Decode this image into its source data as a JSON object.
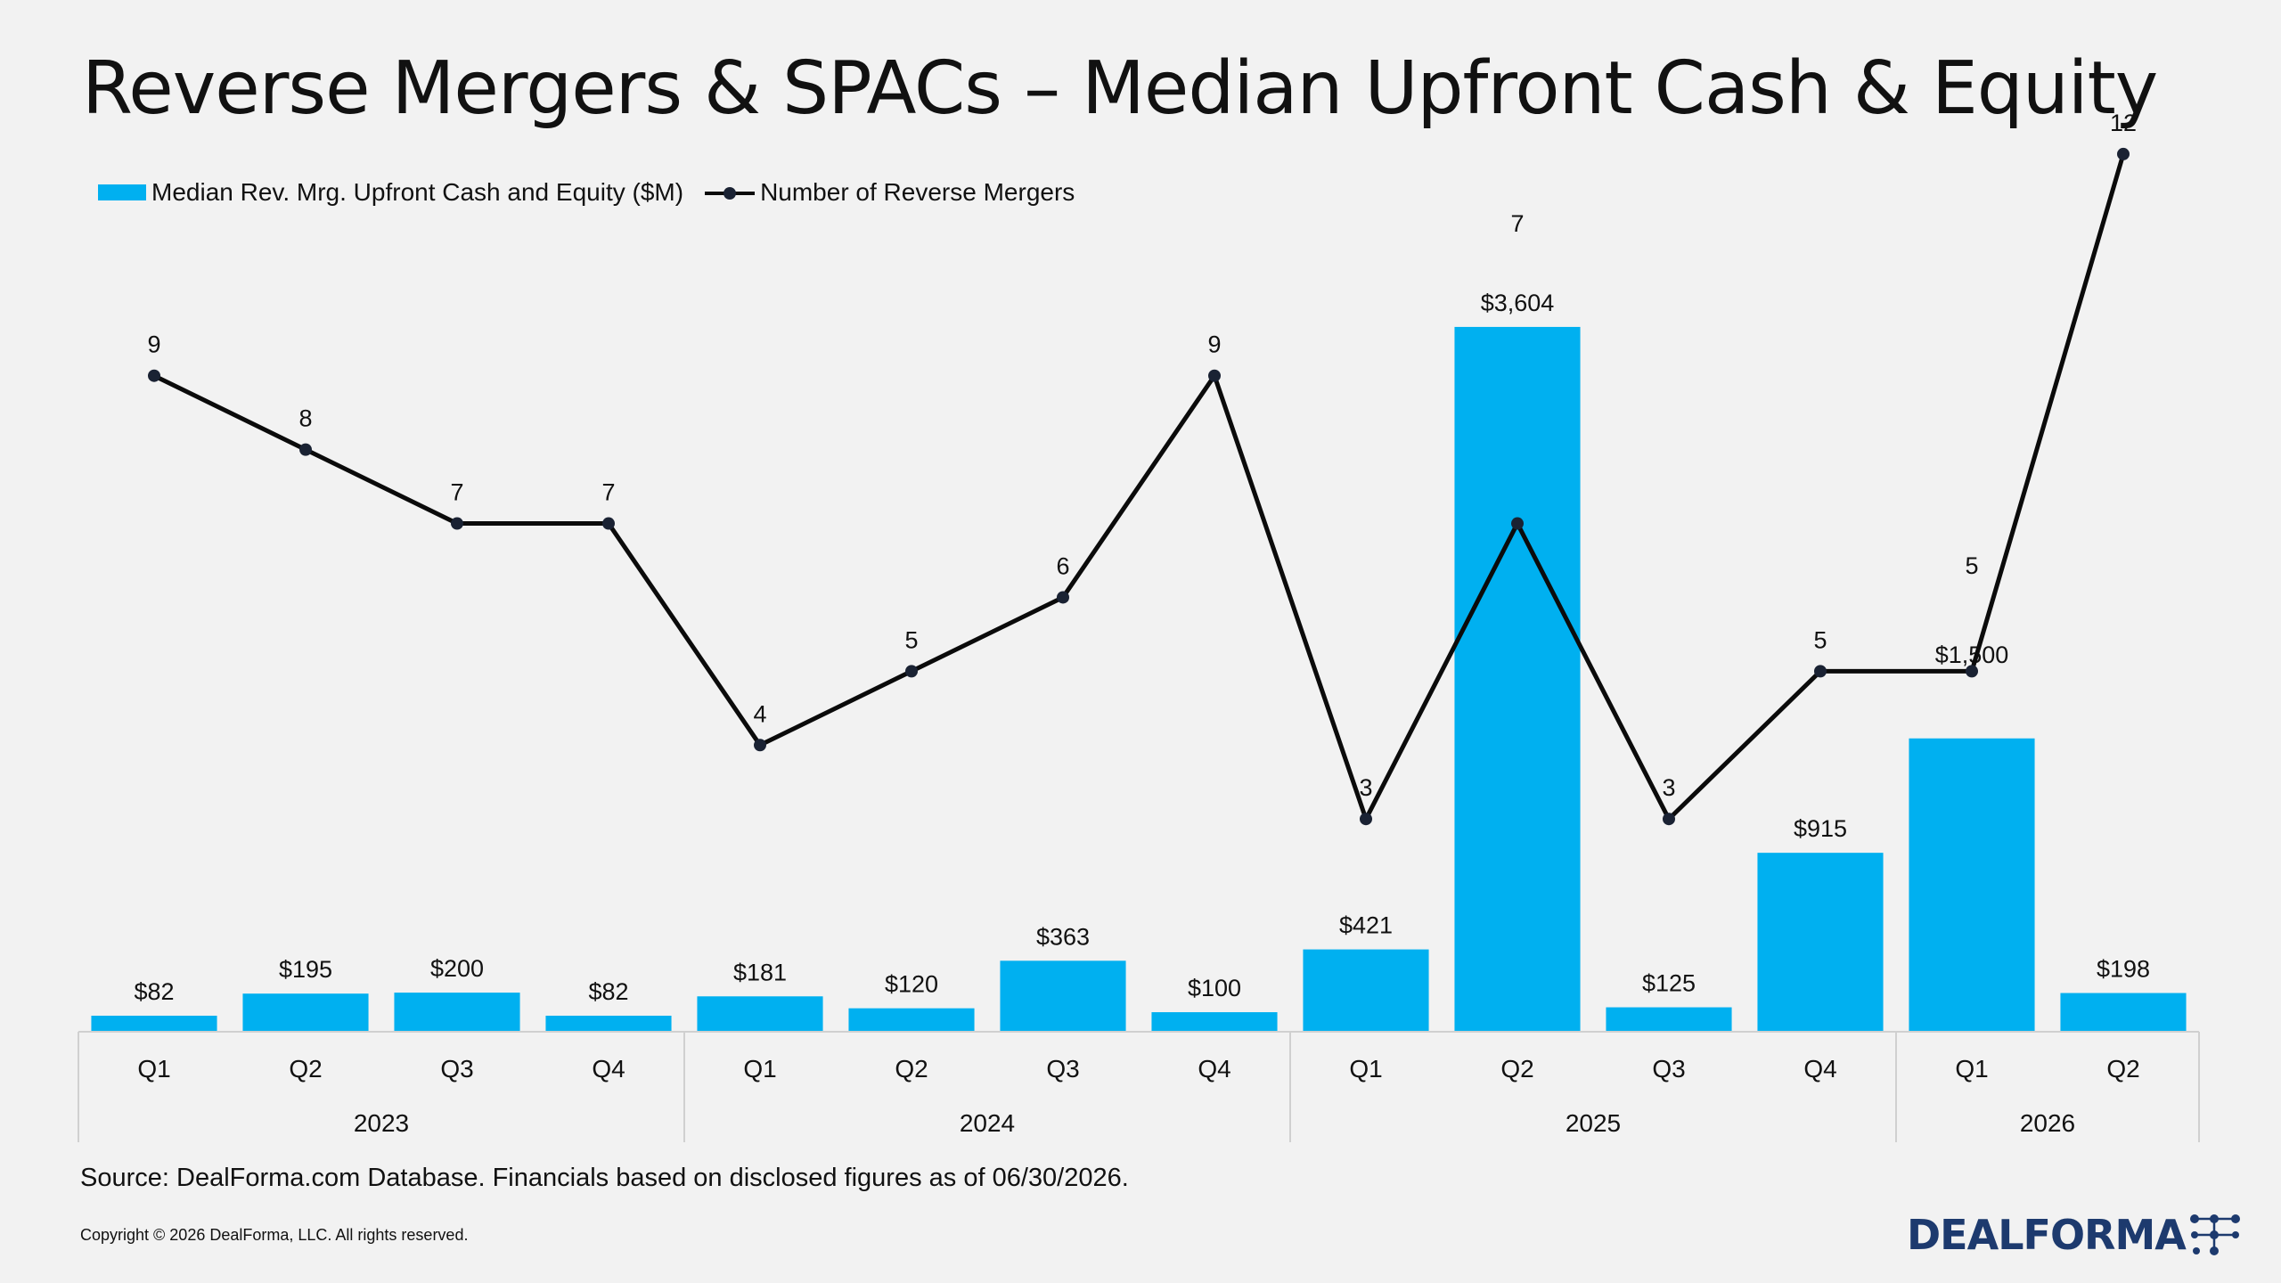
{
  "title": "Reverse Mergers & SPACs – Median Upfront Cash & Equity",
  "legend": {
    "bar_label": "Median Rev. Mrg. Upfront Cash and Equity ($M)",
    "line_label": "Number of Reverse Mergers"
  },
  "footer": {
    "source": "Source: DealForma.com Database. Financials based on disclosed figures as of 06/30/2026.",
    "copyright": "Copyright © 2026 DealForma, LLC. All rights reserved."
  },
  "logo": {
    "text": "DEALFORMA",
    "icon": "network-dots-icon"
  },
  "colors": {
    "bar": "#00b0f0",
    "line": "#0b0b0b",
    "marker": "#1a2233",
    "logo": "#1d3a6e"
  },
  "chart_data": {
    "type": "bar",
    "combo": "bar + line (line on secondary axis)",
    "categories": [
      "Q1",
      "Q2",
      "Q3",
      "Q4",
      "Q1",
      "Q2",
      "Q3",
      "Q4",
      "Q1",
      "Q2",
      "Q3",
      "Q4",
      "Q1",
      "Q2"
    ],
    "groups": [
      {
        "label": "2023",
        "count": 4
      },
      {
        "label": "2024",
        "count": 4
      },
      {
        "label": "2025",
        "count": 4
      },
      {
        "label": "2026",
        "count": 2
      }
    ],
    "series": [
      {
        "name": "Median Rev. Mrg. Upfront Cash and Equity ($M)",
        "type": "bar",
        "values": [
          82,
          195,
          200,
          82,
          181,
          120,
          363,
          100,
          421,
          3604,
          125,
          915,
          1500,
          198
        ],
        "labels": [
          "$82",
          "$195",
          "$200",
          "$82",
          "$181",
          "$120",
          "$363",
          "$100",
          "$421",
          "$3,604",
          "$125",
          "$915",
          "$1,500",
          "$198"
        ]
      },
      {
        "name": "Number of Reverse Mergers",
        "type": "line",
        "values": [
          9,
          8,
          7,
          7,
          4,
          5,
          6,
          9,
          3,
          7,
          3,
          5,
          5,
          12
        ],
        "labels": [
          "9",
          "8",
          "7",
          "7",
          "4",
          "5",
          "6",
          "9",
          "3",
          "7",
          "3",
          "5",
          "5",
          "12"
        ]
      }
    ],
    "y_primary_range": [
      0,
      4000
    ],
    "y_secondary_range": [
      0,
      13
    ],
    "grid": false,
    "legend_position": "top-left"
  }
}
